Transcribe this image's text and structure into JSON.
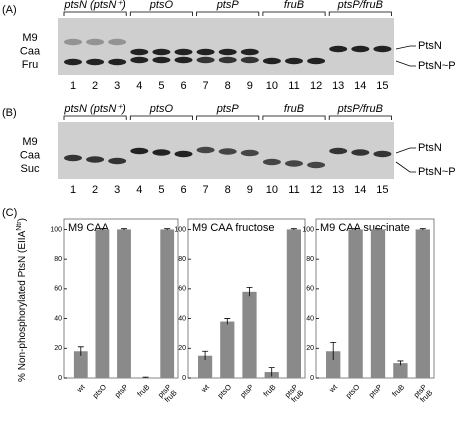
{
  "gels": [
    {
      "label": "(A)",
      "groups": [
        "ptsN (ptsN⁺)",
        "ptsO",
        "ptsP",
        "fruB",
        "ptsP/fruB"
      ],
      "lanes": [
        "1",
        "2",
        "3",
        "4",
        "5",
        "6",
        "7",
        "8",
        "9",
        "10",
        "11",
        "12",
        "13",
        "14",
        "15"
      ],
      "rows": [
        "M9",
        "Caa",
        "Fru"
      ],
      "bands": [
        "PtsN",
        "PtsN~P"
      ]
    },
    {
      "label": "(B)",
      "groups": [
        "ptsN (ptsN⁺)",
        "ptsO",
        "ptsP",
        "fruB",
        "ptsP/fruB"
      ],
      "lanes": [
        "1",
        "2",
        "3",
        "4",
        "5",
        "6",
        "7",
        "8",
        "9",
        "10",
        "11",
        "12",
        "13",
        "14",
        "15"
      ],
      "rows": [
        "M9",
        "Caa",
        "Suc"
      ],
      "bands": [
        "PtsN",
        "PtsN~P"
      ]
    }
  ],
  "panel_c_label": "(C)",
  "y_label": {
    "text": "% Non-phosphorylated PtsN (EIIA",
    "sup": "Ntr",
    "end": ")"
  },
  "chart_data": [
    {
      "type": "bar",
      "title": "M9 CAA",
      "categories": [
        "wt",
        "ptsO",
        "ptsP",
        "fruB",
        "ptsP fruB"
      ],
      "values": [
        18,
        100,
        100,
        0.3,
        100
      ],
      "errors": [
        3,
        0.5,
        0.5,
        0.3,
        0.5
      ],
      "color": "#8a8a8a",
      "ylim": [
        0,
        105
      ],
      "yticks": [
        0,
        20,
        40,
        60,
        80,
        100
      ]
    },
    {
      "type": "bar",
      "title": "M9 CAA fructose",
      "categories": [
        "wt",
        "ptsO",
        "ptsP",
        "fruB",
        "ptsP fruB"
      ],
      "values": [
        15,
        38,
        58,
        4,
        100
      ],
      "errors": [
        3,
        2,
        3,
        3,
        0.5
      ],
      "color": "#8a8a8a",
      "ylim": [
        0,
        105
      ],
      "yticks": [
        0,
        20,
        40,
        60,
        80,
        100
      ]
    },
    {
      "type": "bar",
      "title": "M9 CAA succinate",
      "categories": [
        "wt",
        "ptsO",
        "ptsP",
        "fruB",
        "ptsP fruB"
      ],
      "values": [
        18,
        100,
        100,
        10,
        100
      ],
      "errors": [
        6,
        0.5,
        0.5,
        1.5,
        0.5
      ],
      "color": "#8a8a8a",
      "ylim": [
        0,
        105
      ],
      "yticks": [
        0,
        20,
        40,
        60,
        80,
        100
      ]
    }
  ]
}
